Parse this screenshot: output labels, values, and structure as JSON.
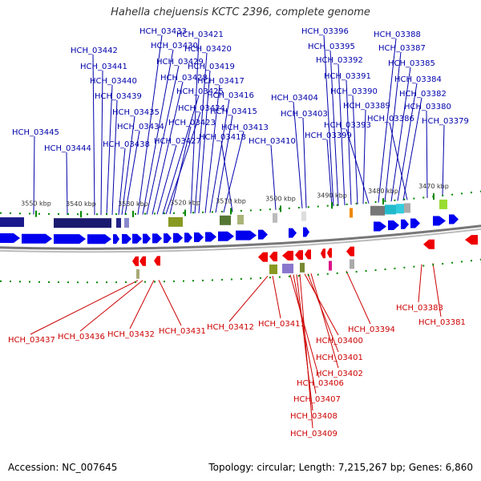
{
  "title": "Hahella chejuensis KCTC 2396, complete genome",
  "footer": {
    "accession": "Accession: NC_007645",
    "stats": "Topology: circular; Length: 7,215,267 bp; Genes: 6,860"
  },
  "colors": {
    "forward": "#0000ee",
    "reverse": "#ee0000",
    "backbone": "#777777",
    "tick": "#008800",
    "label_forward": "#0000aa",
    "label_reverse": "#cc0000"
  },
  "kbp_ticks": [
    "3550 kbp",
    "3540 kbp",
    "3530 kbp",
    "3520 kbp",
    "3510 kbp",
    "3500 kbp",
    "3490 kbp",
    "3480 kbp",
    "3470 kbp"
  ],
  "forward_labels": [
    "HCH_03445",
    "HCH_03444",
    "HCH_03442",
    "HCH_03441",
    "HCH_03440",
    "HCH_03439",
    "HCH_03438",
    "HCH_03435",
    "HCH_03434",
    "HCH_03433",
    "HCH_03430",
    "HCH_03429",
    "HCH_03428",
    "HCH_03427",
    "HCH_03425",
    "HCH_03424",
    "HCH_03423",
    "HCH_03421",
    "HCH_03420",
    "HCH_03419",
    "HCH_03417",
    "HCH_03416",
    "HCH_03415",
    "HCH_03413",
    "HCH_03418",
    "HCH_03410",
    "HCH_03404",
    "HCH_03403",
    "HCH_03399",
    "HCH_03396",
    "HCH_03395",
    "HCH_03392",
    "HCH_03391",
    "HCH_03390",
    "HCH_03389",
    "HCH_03393",
    "HCH_03388",
    "HCH_03387",
    "HCH_03385",
    "HCH_03384",
    "HCH_03382",
    "HCH_03386",
    "HCH_03380",
    "HCH_03379"
  ],
  "reverse_labels": [
    "HCH_03437",
    "HCH_03436",
    "HCH_03432",
    "HCH_03431",
    "HCH_03412",
    "HCH_03411",
    "HCH_03400",
    "HCH_03401",
    "HCH_03402",
    "HCH_03406",
    "HCH_03407",
    "HCH_03408",
    "HCH_03409",
    "HCH_03394",
    "HCH_03383",
    "HCH_03381"
  ]
}
